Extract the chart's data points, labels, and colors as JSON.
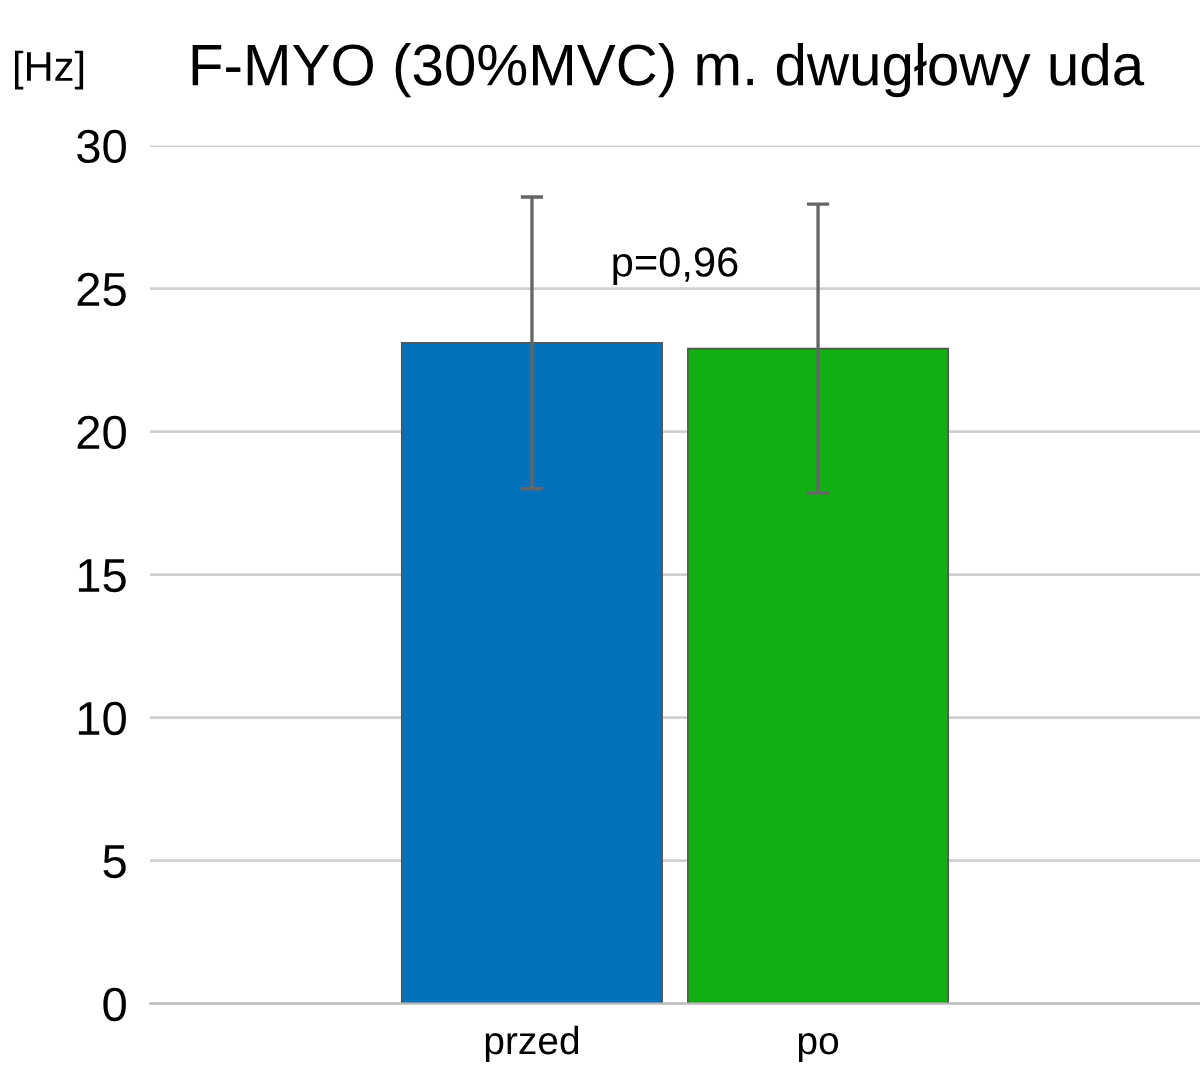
{
  "chart_data": {
    "type": "bar",
    "title": "F-MYO (30%MVC) m. dwugłowy uda",
    "ylabel": "[Hz]",
    "categories": [
      "przed",
      "po"
    ],
    "values": [
      23.1,
      22.9
    ],
    "colors": [
      "#0272bd",
      "#12b012"
    ],
    "errors": [
      5.1,
      5.05
    ],
    "ylim": [
      0,
      30
    ],
    "yticks": [
      0,
      5,
      10,
      15,
      20,
      25,
      30
    ],
    "grid": "y",
    "annotations": [
      "p=0,96"
    ]
  }
}
